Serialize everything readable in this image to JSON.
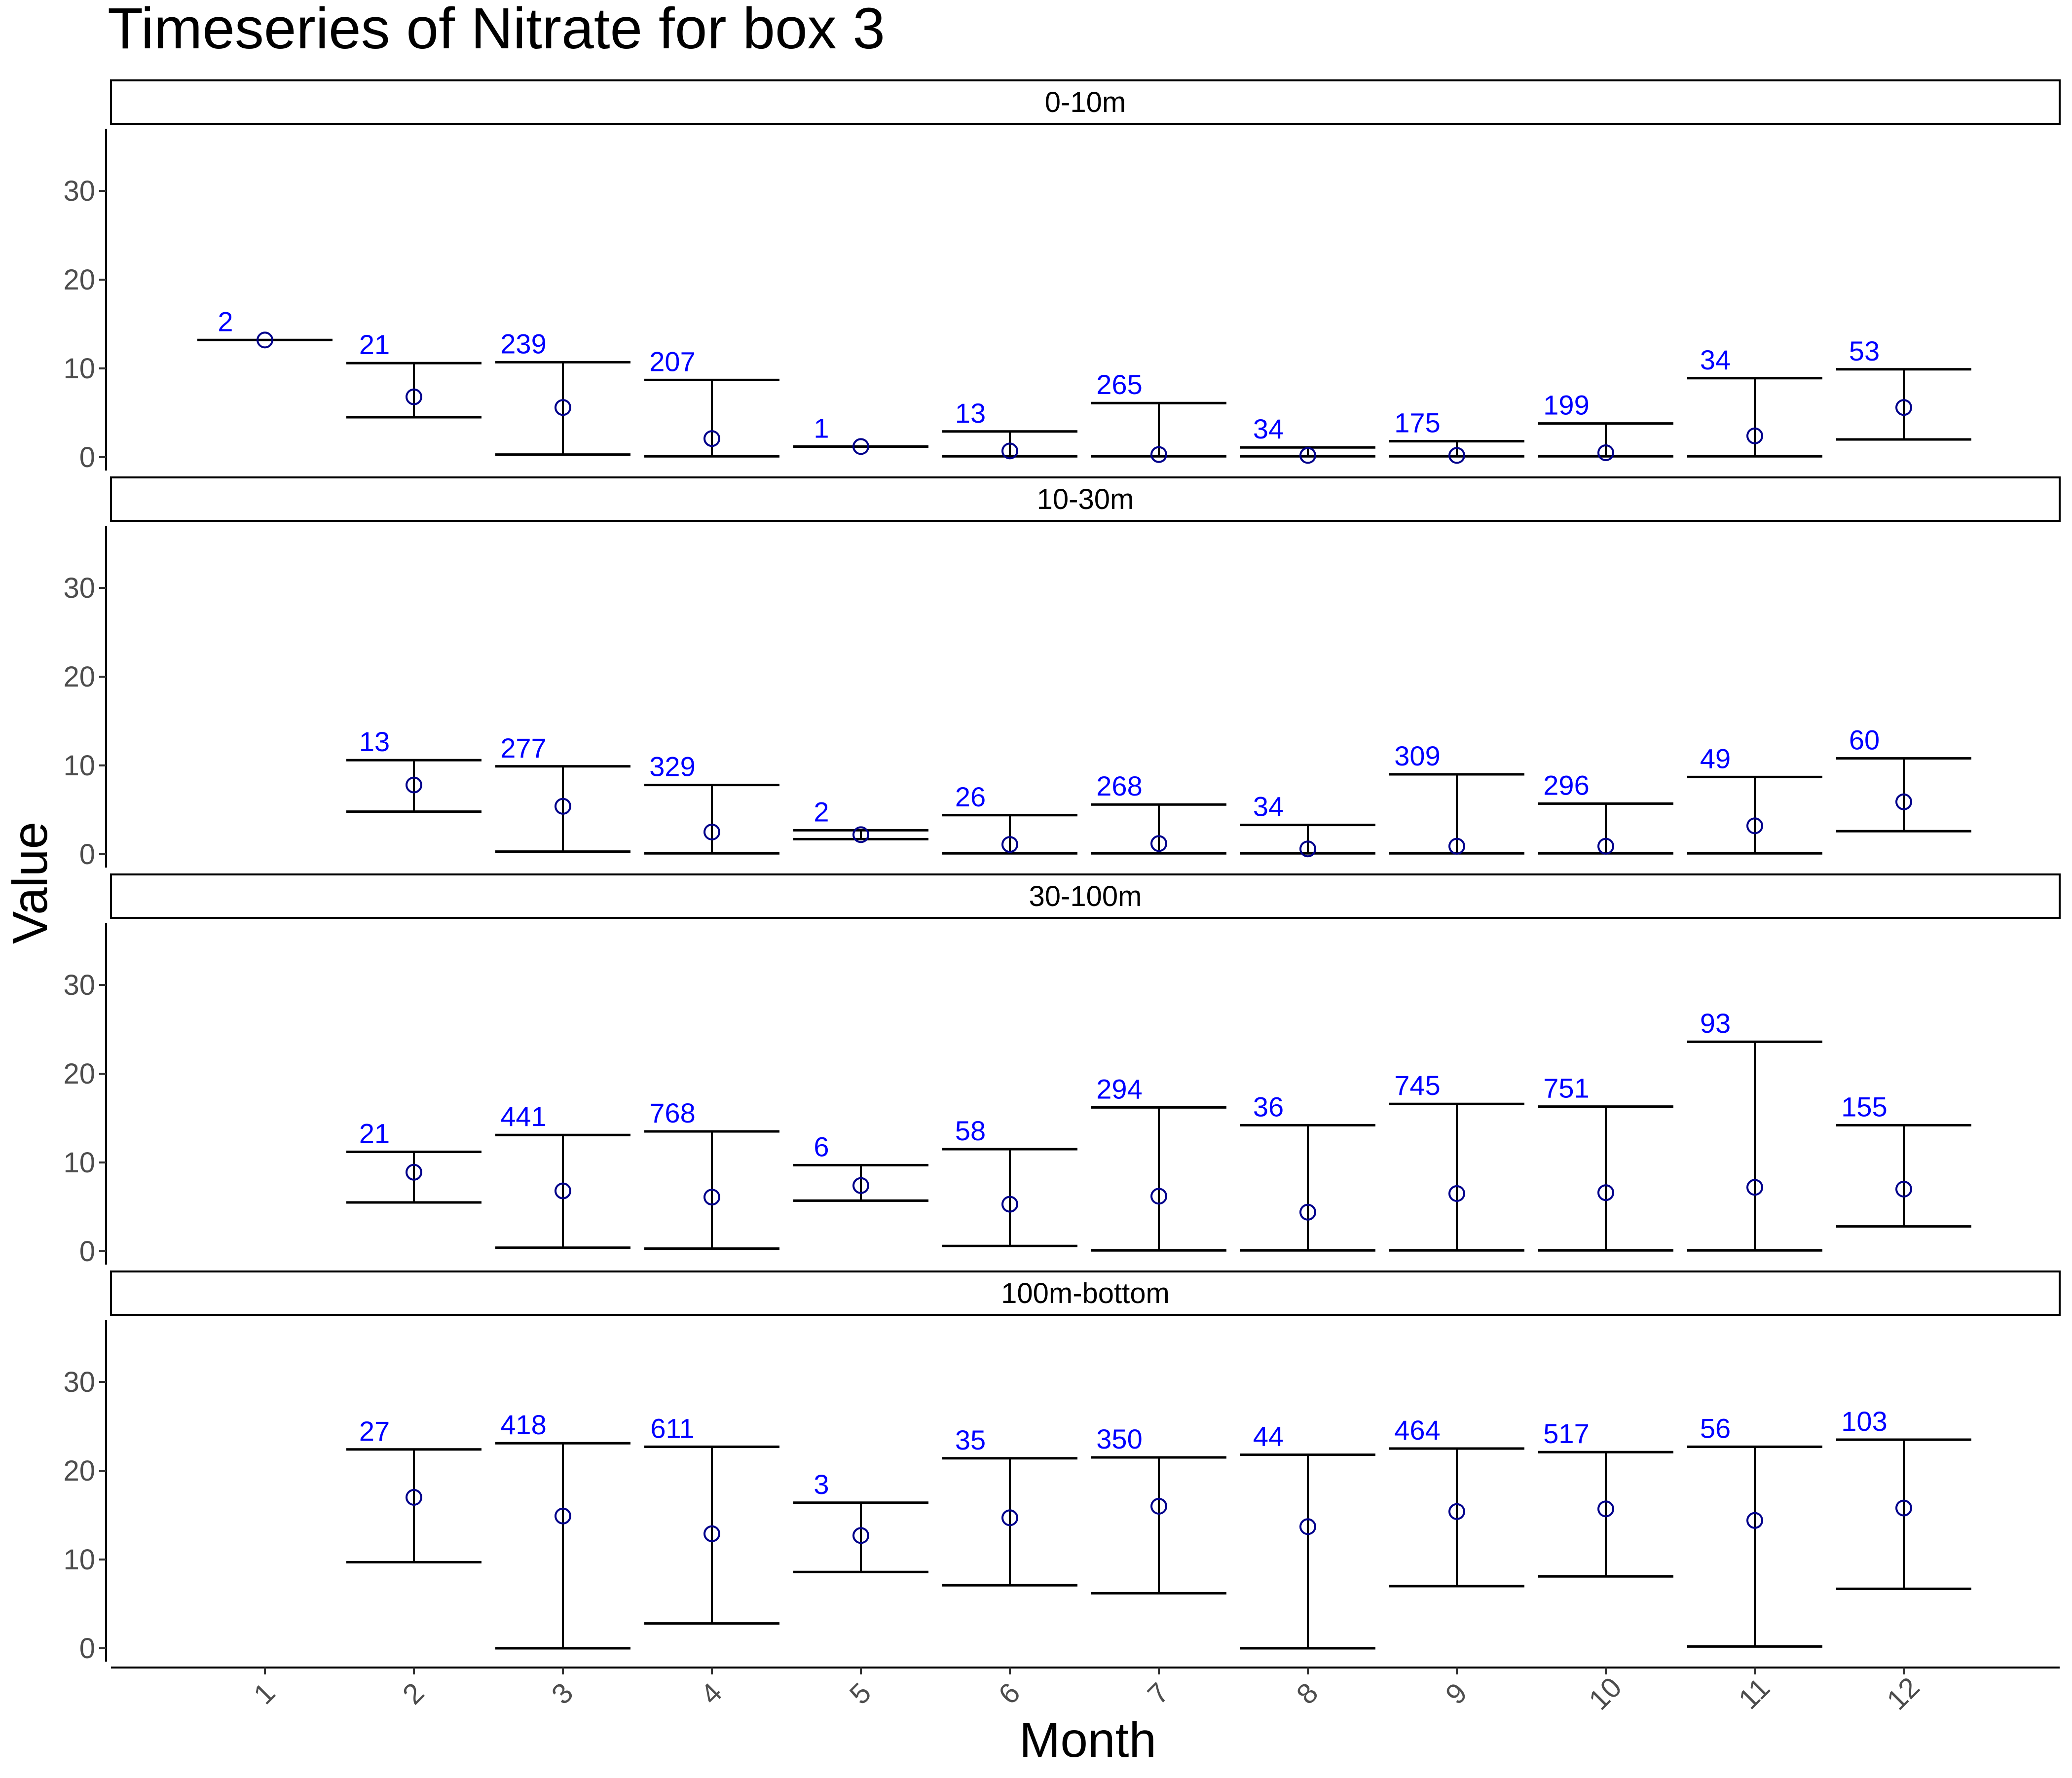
{
  "chart_data": {
    "type": "errorbar",
    "title": "Timeseries of  Nitrate  for box  3",
    "xlabel": "Month",
    "ylabel": "Value",
    "categories": [
      "1",
      "2",
      "3",
      "4",
      "5",
      "6",
      "7",
      "8",
      "9",
      "10",
      "11",
      "12"
    ],
    "ylim": [
      -1.5,
      37
    ],
    "yticks": [
      0,
      10,
      20,
      30
    ],
    "grid": false,
    "colors": {
      "count_label": "#0000ff",
      "point": "#00008b",
      "bar": "#000000"
    },
    "panels": [
      {
        "name": "0-10m",
        "points": [
          {
            "month": "1",
            "mean": 13.2,
            "lower": 13.2,
            "upper": 13.2,
            "count": "2"
          },
          {
            "month": "2",
            "mean": 6.8,
            "lower": 4.5,
            "upper": 10.6,
            "count": "21"
          },
          {
            "month": "3",
            "mean": 5.6,
            "lower": 0.3,
            "upper": 10.7,
            "count": "239"
          },
          {
            "month": "4",
            "mean": 2.1,
            "lower": 0.1,
            "upper": 8.7,
            "count": "207"
          },
          {
            "month": "5",
            "mean": 1.2,
            "lower": 1.2,
            "upper": 1.2,
            "count": "1"
          },
          {
            "month": "6",
            "mean": 0.7,
            "lower": 0.1,
            "upper": 2.9,
            "count": "13"
          },
          {
            "month": "7",
            "mean": 0.3,
            "lower": 0.1,
            "upper": 6.1,
            "count": "265"
          },
          {
            "month": "8",
            "mean": 0.2,
            "lower": 0.1,
            "upper": 1.1,
            "count": "34"
          },
          {
            "month": "9",
            "mean": 0.2,
            "lower": 0.1,
            "upper": 1.8,
            "count": "175"
          },
          {
            "month": "10",
            "mean": 0.5,
            "lower": 0.1,
            "upper": 3.8,
            "count": "199"
          },
          {
            "month": "11",
            "mean": 2.4,
            "lower": 0.1,
            "upper": 8.9,
            "count": "34"
          },
          {
            "month": "12",
            "mean": 5.6,
            "lower": 2.0,
            "upper": 9.9,
            "count": "53"
          }
        ]
      },
      {
        "name": "10-30m",
        "points": [
          {
            "month": "2",
            "mean": 7.8,
            "lower": 4.8,
            "upper": 10.6,
            "count": "13"
          },
          {
            "month": "3",
            "mean": 5.4,
            "lower": 0.3,
            "upper": 9.9,
            "count": "277"
          },
          {
            "month": "4",
            "mean": 2.5,
            "lower": 0.1,
            "upper": 7.8,
            "count": "329"
          },
          {
            "month": "5",
            "mean": 2.2,
            "lower": 1.7,
            "upper": 2.7,
            "count": "2"
          },
          {
            "month": "6",
            "mean": 1.1,
            "lower": 0.1,
            "upper": 4.4,
            "count": "26"
          },
          {
            "month": "7",
            "mean": 1.2,
            "lower": 0.1,
            "upper": 5.6,
            "count": "268"
          },
          {
            "month": "8",
            "mean": 0.6,
            "lower": 0.1,
            "upper": 3.3,
            "count": "34"
          },
          {
            "month": "9",
            "mean": 0.9,
            "lower": 0.1,
            "upper": 9.0,
            "count": "309"
          },
          {
            "month": "10",
            "mean": 0.9,
            "lower": 0.1,
            "upper": 5.7,
            "count": "296"
          },
          {
            "month": "11",
            "mean": 3.2,
            "lower": 0.1,
            "upper": 8.7,
            "count": "49"
          },
          {
            "month": "12",
            "mean": 5.9,
            "lower": 2.6,
            "upper": 10.8,
            "count": "60"
          }
        ]
      },
      {
        "name": "30-100m",
        "points": [
          {
            "month": "2",
            "mean": 8.9,
            "lower": 5.5,
            "upper": 11.2,
            "count": "21"
          },
          {
            "month": "3",
            "mean": 6.8,
            "lower": 0.4,
            "upper": 13.1,
            "count": "441"
          },
          {
            "month": "4",
            "mean": 6.1,
            "lower": 0.3,
            "upper": 13.5,
            "count": "768"
          },
          {
            "month": "5",
            "mean": 7.4,
            "lower": 5.7,
            "upper": 9.7,
            "count": "6"
          },
          {
            "month": "6",
            "mean": 5.3,
            "lower": 0.6,
            "upper": 11.5,
            "count": "58"
          },
          {
            "month": "7",
            "mean": 6.2,
            "lower": 0.1,
            "upper": 16.2,
            "count": "294"
          },
          {
            "month": "8",
            "mean": 4.4,
            "lower": 0.1,
            "upper": 14.2,
            "count": "36"
          },
          {
            "month": "9",
            "mean": 6.5,
            "lower": 0.1,
            "upper": 16.6,
            "count": "745"
          },
          {
            "month": "10",
            "mean": 6.6,
            "lower": 0.1,
            "upper": 16.3,
            "count": "751"
          },
          {
            "month": "11",
            "mean": 7.2,
            "lower": 0.1,
            "upper": 23.6,
            "count": "93"
          },
          {
            "month": "12",
            "mean": 7.0,
            "lower": 2.8,
            "upper": 14.2,
            "count": "155"
          }
        ]
      },
      {
        "name": "100m-bottom",
        "points": [
          {
            "month": "2",
            "mean": 17.0,
            "lower": 9.7,
            "upper": 22.4,
            "count": "27"
          },
          {
            "month": "3",
            "mean": 14.9,
            "lower": 0.0,
            "upper": 23.1,
            "count": "418"
          },
          {
            "month": "4",
            "mean": 12.9,
            "lower": 2.8,
            "upper": 22.7,
            "count": "611"
          },
          {
            "month": "5",
            "mean": 12.7,
            "lower": 8.6,
            "upper": 16.4,
            "count": "3"
          },
          {
            "month": "6",
            "mean": 14.7,
            "lower": 7.1,
            "upper": 21.4,
            "count": "35"
          },
          {
            "month": "7",
            "mean": 16.0,
            "lower": 6.2,
            "upper": 21.5,
            "count": "350"
          },
          {
            "month": "8",
            "mean": 13.7,
            "lower": 0.0,
            "upper": 21.8,
            "count": "44"
          },
          {
            "month": "9",
            "mean": 15.4,
            "lower": 7.0,
            "upper": 22.5,
            "count": "464"
          },
          {
            "month": "10",
            "mean": 15.7,
            "lower": 8.1,
            "upper": 22.1,
            "count": "517"
          },
          {
            "month": "11",
            "mean": 14.4,
            "lower": 0.2,
            "upper": 22.7,
            "count": "56"
          },
          {
            "month": "12",
            "mean": 15.8,
            "lower": 6.7,
            "upper": 23.5,
            "count": "103"
          }
        ]
      }
    ]
  }
}
